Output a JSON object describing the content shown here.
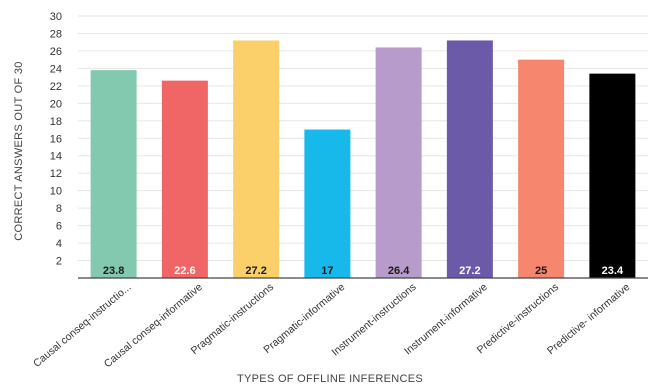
{
  "chart_data": {
    "type": "bar",
    "title": "",
    "xlabel": "TYPES OF OFFLINE INFERENCES",
    "ylabel": "CORRECT ANSWERS OUT OF 30",
    "ylim": [
      0,
      30
    ],
    "yticks": [
      2,
      4,
      6,
      8,
      10,
      12,
      14,
      16,
      18,
      20,
      22,
      24,
      26,
      28,
      30
    ],
    "grid": true,
    "legend": "none",
    "categories": [
      "Causal conseq-instructio...",
      "Causal conseq-informative",
      "Pragmatic-instructions",
      "Pragmatic-informative",
      "Instrument-instructions",
      "Instrument-informative",
      "Predictive-instructions",
      "Predictive- informative"
    ],
    "values": [
      23.8,
      22.6,
      27.2,
      17,
      26.4,
      27.2,
      25,
      23.4
    ],
    "data_labels": [
      "23.8",
      "22.6",
      "27.2",
      "17",
      "26.4",
      "27.2",
      "25",
      "23.4"
    ],
    "colors": [
      "#82c9b0",
      "#f06666",
      "#fbcf6a",
      "#17b8ea",
      "#b69bcb",
      "#6a5aa8",
      "#f7866f",
      "#000000"
    ],
    "label_colors": [
      "#1a1a1a",
      "#ffffff",
      "#1a1a1a",
      "#1a1a1a",
      "#1a1a1a",
      "#ffffff",
      "#1a1a1a",
      "#ffffff"
    ]
  }
}
